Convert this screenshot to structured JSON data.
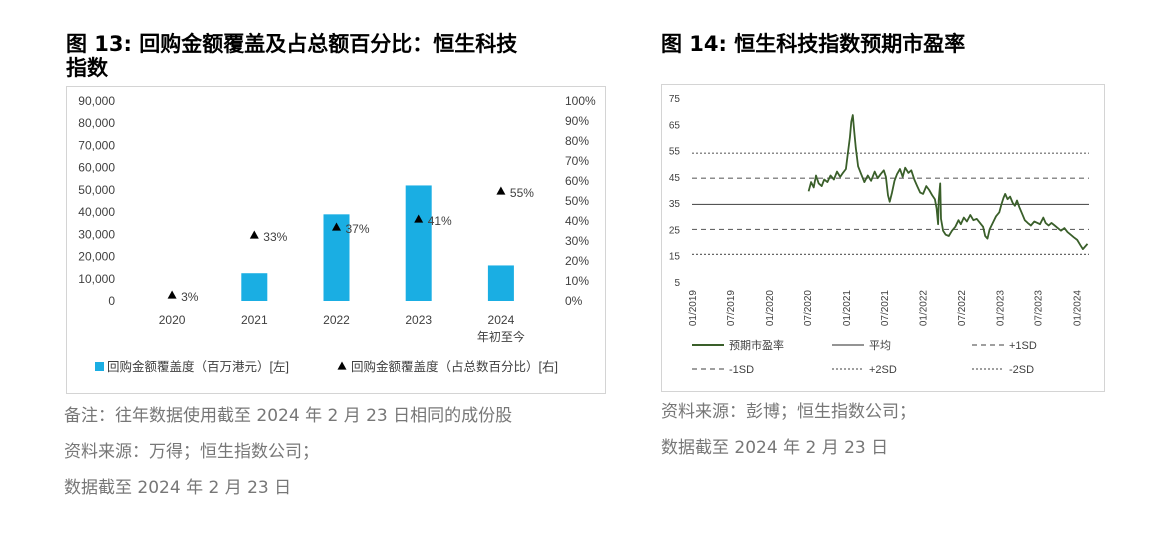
{
  "fig13": {
    "title_line1": "图 13: 回购金额覆盖及占总额百分比：恒生科技",
    "title_line2": "指数",
    "notes": [
      "备注：往年数据使用截至 2024 年 2 月 23 日相同的成份股",
      "资料来源：万得；恒生指数公司；",
      "数据截至  2024 年 2 月 23 日"
    ]
  },
  "fig14": {
    "title": "图 14:  恒生科技指数预期市盈率",
    "notes": [
      "资料来源：彭博；恒生指数公司；",
      "数据截至  2024 年 2 月 23 日"
    ]
  },
  "chart_data": [
    {
      "type": "bar",
      "categories": [
        "2020",
        "2021",
        "2022",
        "2023",
        "2024"
      ],
      "category_sublabels": [
        "",
        "",
        "",
        "",
        "年初至今"
      ],
      "series": [
        {
          "name": "回购金额覆盖度（百万港元）[左]",
          "type": "bar",
          "axis": "left",
          "color": "#1aaee3",
          "values": [
            0,
            12500,
            39000,
            52000,
            16000
          ]
        },
        {
          "name": "回购金额覆盖度（占总数百分比）[右]",
          "type": "scatter",
          "axis": "right",
          "marker": "triangle",
          "color": "#000000",
          "values": [
            3,
            33,
            37,
            41,
            55
          ],
          "data_labels": [
            "3%",
            "33%",
            "37%",
            "41%",
            "55%"
          ]
        }
      ],
      "ylim_left": [
        0,
        90000
      ],
      "yticks_left": [
        "0",
        "10,000",
        "20,000",
        "30,000",
        "40,000",
        "50,000",
        "60,000",
        "70,000",
        "80,000",
        "90,000"
      ],
      "ylim_right": [
        0,
        100
      ],
      "yticks_right": [
        "0%",
        "10%",
        "20%",
        "30%",
        "40%",
        "50%",
        "60%",
        "70%",
        "80%",
        "90%",
        "100%"
      ],
      "legend_position": "bottom",
      "legend": [
        {
          "label": "回购金额覆盖度（百万港元）[左]",
          "symbol": "square",
          "color": "#1aaee3"
        },
        {
          "label": "回购金额覆盖度（占总数百分比）[右]",
          "symbol": "triangle",
          "color": "#000000"
        }
      ],
      "grid": false
    },
    {
      "type": "line",
      "x_tick_labels": [
        "01/2019",
        "07/2019",
        "01/2020",
        "07/2020",
        "01/2021",
        "07/2021",
        "01/2022",
        "07/2022",
        "01/2023",
        "07/2023",
        "01/2024"
      ],
      "ylim": [
        5,
        75
      ],
      "yticks": [
        "5",
        "15",
        "25",
        "35",
        "45",
        "55",
        "65",
        "75"
      ],
      "grid": false,
      "series": [
        {
          "name": "预期市盈率",
          "color": "#3a5f2a",
          "style": "solid",
          "points": [
            [
              "2020-07-08",
              39.5
            ],
            [
              "2020-07-20",
              43
            ],
            [
              "2020-08-01",
              41
            ],
            [
              "2020-08-12",
              45.5
            ],
            [
              "2020-08-25",
              42.5
            ],
            [
              "2020-09-08",
              41.5
            ],
            [
              "2020-09-20",
              44
            ],
            [
              "2020-10-05",
              43
            ],
            [
              "2020-10-20",
              45.5
            ],
            [
              "2020-11-05",
              44
            ],
            [
              "2020-11-20",
              47
            ],
            [
              "2020-12-05",
              45
            ],
            [
              "2020-12-18",
              46.5
            ],
            [
              "2021-01-01",
              48
            ],
            [
              "2021-01-12",
              55
            ],
            [
              "2021-01-20",
              60
            ],
            [
              "2021-01-27",
              66
            ],
            [
              "2021-02-03",
              68.5
            ],
            [
              "2021-02-10",
              62
            ],
            [
              "2021-02-17",
              56
            ],
            [
              "2021-02-28",
              49
            ],
            [
              "2021-03-15",
              46
            ],
            [
              "2021-03-30",
              43
            ],
            [
              "2021-04-15",
              45.5
            ],
            [
              "2021-05-01",
              43.5
            ],
            [
              "2021-05-18",
              47
            ],
            [
              "2021-06-01",
              44.5
            ],
            [
              "2021-06-15",
              46
            ],
            [
              "2021-06-30",
              47.5
            ],
            [
              "2021-07-10",
              45
            ],
            [
              "2021-07-20",
              38
            ],
            [
              "2021-07-28",
              35.5
            ],
            [
              "2021-08-08",
              39
            ],
            [
              "2021-08-20",
              43.5
            ],
            [
              "2021-09-01",
              46
            ],
            [
              "2021-09-15",
              48
            ],
            [
              "2021-09-28",
              45
            ],
            [
              "2021-10-10",
              48.5
            ],
            [
              "2021-10-25",
              46.5
            ],
            [
              "2021-11-08",
              47.5
            ],
            [
              "2021-11-22",
              44
            ],
            [
              "2021-12-06",
              41.5
            ],
            [
              "2021-12-20",
              39
            ],
            [
              "2022-01-03",
              38.5
            ],
            [
              "2022-01-18",
              41.5
            ],
            [
              "2022-02-01",
              40
            ],
            [
              "2022-02-15",
              38
            ],
            [
              "2022-02-28",
              36.5
            ],
            [
              "2022-03-08",
              33
            ],
            [
              "2022-03-15",
              27
            ],
            [
              "2022-03-18",
              36
            ],
            [
              "2022-03-25",
              42.5
            ],
            [
              "2022-03-29",
              29
            ],
            [
              "2022-04-08",
              24.5
            ],
            [
              "2022-04-20",
              23
            ],
            [
              "2022-05-05",
              22.5
            ],
            [
              "2022-05-20",
              24.5
            ],
            [
              "2022-06-05",
              26
            ],
            [
              "2022-06-20",
              28.5
            ],
            [
              "2022-07-01",
              27
            ],
            [
              "2022-07-15",
              29.5
            ],
            [
              "2022-07-30",
              28
            ],
            [
              "2022-08-15",
              30.5
            ],
            [
              "2022-08-30",
              28.5
            ],
            [
              "2022-09-15",
              29
            ],
            [
              "2022-09-30",
              27.5
            ],
            [
              "2022-10-15",
              26
            ],
            [
              "2022-10-25",
              22.5
            ],
            [
              "2022-11-05",
              21.5
            ],
            [
              "2022-11-15",
              25
            ],
            [
              "2022-11-30",
              27.5
            ],
            [
              "2022-12-15",
              30
            ],
            [
              "2022-12-31",
              31.5
            ],
            [
              "2023-01-10",
              34.5
            ],
            [
              "2023-01-20",
              37
            ],
            [
              "2023-01-28",
              38.5
            ],
            [
              "2023-02-08",
              36.5
            ],
            [
              "2023-02-20",
              37.5
            ],
            [
              "2023-03-05",
              35
            ],
            [
              "2023-03-15",
              34
            ],
            [
              "2023-03-25",
              36
            ],
            [
              "2023-04-05",
              33.5
            ],
            [
              "2023-04-18",
              31
            ],
            [
              "2023-05-01",
              28.5
            ],
            [
              "2023-05-15",
              27.5
            ],
            [
              "2023-05-30",
              26.5
            ],
            [
              "2023-06-15",
              28
            ],
            [
              "2023-06-30",
              27.5
            ],
            [
              "2023-07-12",
              27
            ],
            [
              "2023-07-28",
              29.5
            ],
            [
              "2023-08-08",
              27.5
            ],
            [
              "2023-08-22",
              26.5
            ],
            [
              "2023-09-05",
              27.5
            ],
            [
              "2023-09-20",
              26.5
            ],
            [
              "2023-10-05",
              25.5
            ],
            [
              "2023-10-20",
              24.5
            ],
            [
              "2023-11-05",
              25.5
            ],
            [
              "2023-11-20",
              24
            ],
            [
              "2023-12-05",
              23
            ],
            [
              "2023-12-20",
              22
            ],
            [
              "2024-01-05",
              21
            ],
            [
              "2024-01-20",
              19
            ],
            [
              "2024-02-01",
              17.5
            ],
            [
              "2024-02-12",
              18.5
            ],
            [
              "2024-02-23",
              19.5
            ]
          ]
        },
        {
          "name": "平均",
          "color": "#555555",
          "style": "solid",
          "value": 34.5
        },
        {
          "name": "+1SD",
          "color": "#666666",
          "style": "dashed",
          "value": 44.5
        },
        {
          "name": "-1SD",
          "color": "#666666",
          "style": "dashed",
          "value": 25
        },
        {
          "name": "+2SD",
          "color": "#666666",
          "style": "dotted",
          "value": 54
        },
        {
          "name": "-2SD",
          "color": "#666666",
          "style": "dotted",
          "value": 15.5
        }
      ],
      "legend_position": "bottom"
    }
  ]
}
